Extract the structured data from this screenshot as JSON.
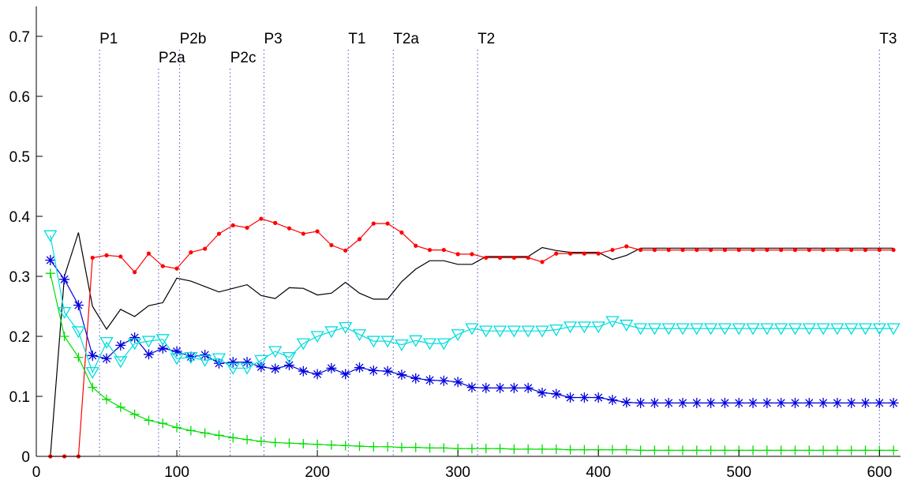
{
  "chart_data": {
    "type": "line",
    "title": "",
    "xlabel": "",
    "ylabel": "",
    "xlim": [
      0,
      615
    ],
    "ylim": [
      0,
      0.75
    ],
    "xticks": [
      0,
      100,
      200,
      300,
      400,
      500,
      600
    ],
    "yticks": [
      0,
      0.1,
      0.2,
      0.3,
      0.4,
      0.5,
      0.6,
      0.7
    ],
    "ytick_labels": [
      "0",
      "0.1",
      "0.2",
      "0.3",
      "0.4",
      "0.5",
      "0.6",
      "0.7"
    ],
    "grid": false,
    "legend": "none",
    "events": [
      {
        "label": "P1",
        "x": 45,
        "row": 1
      },
      {
        "label": "P2a",
        "x": 87,
        "row": 2
      },
      {
        "label": "P2b",
        "x": 102,
        "row": 1
      },
      {
        "label": "P2c",
        "x": 138,
        "row": 2
      },
      {
        "label": "P3",
        "x": 162,
        "row": 1
      },
      {
        "label": "T1",
        "x": 222,
        "row": 1
      },
      {
        "label": "T2a",
        "x": 254,
        "row": 1
      },
      {
        "label": "T2",
        "x": 314,
        "row": 1
      },
      {
        "label": "T3",
        "x": 600,
        "row": 1
      }
    ],
    "series": [
      {
        "color": "#000000",
        "marker": "none",
        "x": [
          10,
          20,
          30,
          40,
          50,
          60,
          70,
          80,
          90,
          100,
          110,
          120,
          130,
          140,
          150,
          160,
          170,
          180,
          190,
          200,
          210,
          220,
          230,
          240,
          250,
          260,
          270,
          280,
          290,
          300,
          310,
          320,
          330,
          340,
          350,
          360,
          370,
          380,
          390,
          400,
          410,
          420,
          430,
          440,
          450,
          460,
          470,
          480,
          490,
          500,
          510,
          520,
          530,
          540,
          550,
          560,
          570,
          580,
          590,
          600,
          610
        ],
        "y": [
          0,
          0.3,
          0.373,
          0.25,
          0.212,
          0.245,
          0.233,
          0.251,
          0.256,
          0.297,
          0.292,
          0.283,
          0.274,
          0.28,
          0.286,
          0.268,
          0.263,
          0.281,
          0.28,
          0.269,
          0.272,
          0.29,
          0.272,
          0.262,
          0.262,
          0.291,
          0.312,
          0.326,
          0.326,
          0.32,
          0.32,
          0.333,
          0.333,
          0.333,
          0.333,
          0.348,
          0.343,
          0.34,
          0.34,
          0.34,
          0.328,
          0.335,
          0.347,
          0.347,
          0.347,
          0.347,
          0.347,
          0.347,
          0.347,
          0.347,
          0.347,
          0.347,
          0.347,
          0.347,
          0.347,
          0.347,
          0.347,
          0.347,
          0.347,
          0.347,
          0.347
        ]
      },
      {
        "color": "#ff0000",
        "marker": "dot",
        "x": [
          10,
          20,
          30,
          40,
          50,
          60,
          70,
          80,
          90,
          100,
          110,
          120,
          130,
          140,
          150,
          160,
          170,
          180,
          190,
          200,
          210,
          220,
          230,
          240,
          250,
          260,
          270,
          280,
          290,
          300,
          310,
          320,
          330,
          340,
          350,
          360,
          370,
          380,
          390,
          400,
          410,
          420,
          430,
          440,
          450,
          460,
          470,
          480,
          490,
          500,
          510,
          520,
          530,
          540,
          550,
          560,
          570,
          580,
          590,
          600,
          610
        ],
        "y": [
          0,
          0,
          0,
          0.331,
          0.335,
          0.333,
          0.307,
          0.338,
          0.317,
          0.313,
          0.34,
          0.346,
          0.371,
          0.385,
          0.381,
          0.396,
          0.389,
          0.38,
          0.371,
          0.375,
          0.352,
          0.343,
          0.362,
          0.388,
          0.388,
          0.373,
          0.351,
          0.344,
          0.344,
          0.337,
          0.337,
          0.331,
          0.331,
          0.331,
          0.331,
          0.324,
          0.338,
          0.338,
          0.338,
          0.338,
          0.344,
          0.35,
          0.344,
          0.344,
          0.344,
          0.344,
          0.344,
          0.344,
          0.344,
          0.344,
          0.344,
          0.344,
          0.344,
          0.344,
          0.344,
          0.344,
          0.344,
          0.344,
          0.344,
          0.344,
          0.344
        ]
      },
      {
        "color": "#00dd00",
        "marker": "plus",
        "x": [
          10,
          20,
          30,
          40,
          50,
          60,
          70,
          80,
          90,
          100,
          110,
          120,
          130,
          140,
          150,
          160,
          170,
          180,
          190,
          200,
          210,
          220,
          230,
          240,
          250,
          260,
          270,
          280,
          290,
          300,
          310,
          320,
          330,
          340,
          350,
          360,
          370,
          380,
          390,
          400,
          410,
          420,
          430,
          440,
          450,
          460,
          470,
          480,
          490,
          500,
          510,
          520,
          530,
          540,
          550,
          560,
          570,
          580,
          590,
          600,
          610
        ],
        "y": [
          0.305,
          0.2,
          0.165,
          0.115,
          0.095,
          0.082,
          0.07,
          0.06,
          0.055,
          0.048,
          0.043,
          0.039,
          0.035,
          0.031,
          0.028,
          0.025,
          0.023,
          0.022,
          0.021,
          0.02,
          0.019,
          0.018,
          0.017,
          0.016,
          0.016,
          0.015,
          0.015,
          0.014,
          0.014,
          0.013,
          0.013,
          0.013,
          0.013,
          0.012,
          0.012,
          0.012,
          0.012,
          0.011,
          0.011,
          0.011,
          0.011,
          0.011,
          0.01,
          0.01,
          0.01,
          0.01,
          0.01,
          0.01,
          0.01,
          0.01,
          0.01,
          0.01,
          0.01,
          0.01,
          0.01,
          0.01,
          0.01,
          0.01,
          0.01,
          0.01,
          0.01
        ]
      },
      {
        "color": "#0000dd",
        "marker": "asterisk",
        "x": [
          10,
          20,
          30,
          40,
          50,
          60,
          70,
          80,
          90,
          100,
          110,
          120,
          130,
          140,
          150,
          160,
          170,
          180,
          190,
          200,
          210,
          220,
          230,
          240,
          250,
          260,
          270,
          280,
          290,
          300,
          310,
          320,
          330,
          340,
          350,
          360,
          370,
          380,
          390,
          400,
          410,
          420,
          430,
          440,
          450,
          460,
          470,
          480,
          490,
          500,
          510,
          520,
          530,
          540,
          550,
          560,
          570,
          580,
          590,
          600,
          610
        ],
        "y": [
          0.327,
          0.295,
          0.252,
          0.168,
          0.163,
          0.185,
          0.198,
          0.17,
          0.18,
          0.175,
          0.166,
          0.169,
          0.155,
          0.157,
          0.157,
          0.149,
          0.146,
          0.152,
          0.142,
          0.137,
          0.147,
          0.137,
          0.148,
          0.143,
          0.142,
          0.136,
          0.13,
          0.127,
          0.126,
          0.124,
          0.115,
          0.114,
          0.114,
          0.114,
          0.114,
          0.106,
          0.104,
          0.098,
          0.098,
          0.098,
          0.094,
          0.09,
          0.089,
          0.089,
          0.089,
          0.089,
          0.089,
          0.089,
          0.089,
          0.089,
          0.089,
          0.089,
          0.089,
          0.089,
          0.089,
          0.089,
          0.089,
          0.089,
          0.089,
          0.089,
          0.089
        ]
      },
      {
        "color": "#00dddd",
        "marker": "triangle-down",
        "x": [
          10,
          20,
          30,
          40,
          50,
          60,
          70,
          80,
          90,
          100,
          110,
          120,
          130,
          140,
          150,
          160,
          170,
          180,
          190,
          200,
          210,
          220,
          230,
          240,
          250,
          260,
          270,
          280,
          290,
          300,
          310,
          320,
          330,
          340,
          350,
          360,
          370,
          380,
          390,
          400,
          410,
          420,
          430,
          440,
          450,
          460,
          470,
          480,
          490,
          500,
          510,
          520,
          530,
          540,
          550,
          560,
          570,
          580,
          590,
          600,
          610
        ],
        "y": [
          0.368,
          0.24,
          0.208,
          0.14,
          0.19,
          0.158,
          0.188,
          0.192,
          0.195,
          0.163,
          0.165,
          0.16,
          0.163,
          0.147,
          0.147,
          0.16,
          0.175,
          0.165,
          0.188,
          0.2,
          0.208,
          0.215,
          0.203,
          0.192,
          0.192,
          0.186,
          0.193,
          0.188,
          0.188,
          0.203,
          0.213,
          0.209,
          0.209,
          0.209,
          0.209,
          0.209,
          0.211,
          0.216,
          0.216,
          0.216,
          0.225,
          0.219,
          0.213,
          0.213,
          0.213,
          0.213,
          0.213,
          0.213,
          0.213,
          0.213,
          0.213,
          0.213,
          0.213,
          0.213,
          0.213,
          0.213,
          0.213,
          0.213,
          0.213,
          0.213,
          0.213
        ]
      }
    ]
  }
}
